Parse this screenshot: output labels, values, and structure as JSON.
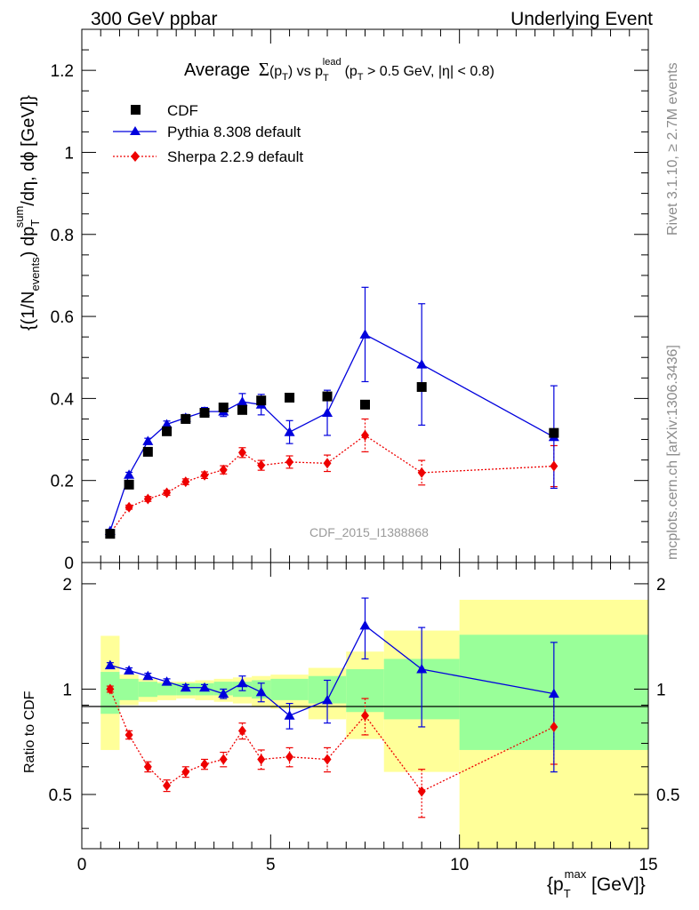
{
  "header": {
    "energy": "300 GeV ppbar",
    "process": "Underlying Event"
  },
  "side_labels": {
    "rivet": "Rivet 3.1.10, ≥ 2.7M events",
    "mcplots": "mcplots.cern.ch [arXiv:1306.3436]"
  },
  "watermark": "CDF_2015_I1388868",
  "chart_data": [
    {
      "type": "scatter",
      "title_parts": {
        "prefix": "Average",
        "sigma": "Σ",
        "pt_open": "(p",
        "pt_sub": "T",
        "pt_close": ") vs p",
        "lead_sub": "T",
        "lead_sup": "lead",
        "cut_open": "(p",
        "cut_sub": "T",
        "cut_rest": " > 0.5 GeV, |η| < 0.8)"
      },
      "ylabel_parts": {
        "p1": "{(1/N",
        "sub1": "events",
        "p2": ") dp",
        "sub2": "T",
        "sup2": "sum",
        "p3": "/dη, dϕ [GeV]}"
      },
      "ylim": [
        0,
        1.3
      ],
      "xlim": [
        0,
        15
      ],
      "ytick_labels": [
        "0",
        "0.2",
        "0.4",
        "0.6",
        "0.8",
        "1",
        "1.2"
      ],
      "ytick_values": [
        0,
        0.2,
        0.4,
        0.6,
        0.8,
        1.0,
        1.2
      ],
      "legend_position": "top-left",
      "series": [
        {
          "name": "CDF",
          "color": "#000000",
          "marker": "square",
          "line": "none",
          "x": [
            0.75,
            1.25,
            1.75,
            2.25,
            2.75,
            3.25,
            3.75,
            4.25,
            4.75,
            5.5,
            6.5,
            7.5,
            9.0,
            12.5
          ],
          "y": [
            0.07,
            0.19,
            0.27,
            0.32,
            0.35,
            0.365,
            0.378,
            0.372,
            0.395,
            0.402,
            0.405,
            0.385,
            0.428,
            0.316
          ]
        },
        {
          "name": "Pythia 8.308 default",
          "color": "#0000dd",
          "marker": "triangle",
          "line": "solid",
          "x": [
            0.75,
            1.25,
            1.75,
            2.25,
            2.75,
            3.25,
            3.75,
            4.25,
            4.75,
            5.5,
            6.5,
            7.5,
            9.0,
            12.5
          ],
          "y": [
            0.077,
            0.214,
            0.296,
            0.337,
            0.353,
            0.368,
            0.368,
            0.392,
            0.385,
            0.318,
            0.365,
            0.556,
            0.483,
            0.306
          ],
          "err": [
            0.004,
            0.006,
            0.007,
            0.008,
            0.008,
            0.01,
            0.012,
            0.02,
            0.025,
            0.028,
            0.055,
            0.115,
            0.148,
            0.125
          ]
        },
        {
          "name": "Sherpa 2.2.9 default",
          "color": "#ee0000",
          "marker": "diamond",
          "line": "dotted",
          "x": [
            0.75,
            1.25,
            1.75,
            2.25,
            2.75,
            3.25,
            3.75,
            4.25,
            4.75,
            5.5,
            6.5,
            7.5,
            9.0,
            12.5
          ],
          "y": [
            0.071,
            0.135,
            0.155,
            0.17,
            0.197,
            0.213,
            0.226,
            0.268,
            0.237,
            0.245,
            0.242,
            0.31,
            0.219,
            0.235
          ],
          "err": [
            0.003,
            0.005,
            0.006,
            0.006,
            0.007,
            0.008,
            0.01,
            0.012,
            0.012,
            0.015,
            0.02,
            0.04,
            0.03,
            0.05
          ]
        }
      ]
    },
    {
      "type": "scatter",
      "ylabel": "Ratio to CDF",
      "ylim": [
        0.35,
        2.3
      ],
      "xlim": [
        0,
        15
      ],
      "ytick_labels": [
        "0.5",
        "1",
        "2"
      ],
      "ytick_values": [
        0.5,
        1.0,
        2.0
      ],
      "xtick_labels": [
        "0",
        "5",
        "10",
        "15"
      ],
      "xtick_values": [
        0,
        5,
        10,
        15
      ],
      "xlabel_parts": {
        "p1": "{p",
        "sub": "T",
        "sup": "max",
        "p2": " [GeV]}"
      },
      "band_colors": {
        "inner": "#99ff99",
        "outer": "#ffff99"
      },
      "bins": [
        {
          "x0": 0.5,
          "x1": 1.0,
          "inner": [
            0.85,
            1.12
          ],
          "outer": [
            0.67,
            1.42
          ]
        },
        {
          "x0": 1.0,
          "x1": 1.5,
          "inner": [
            0.93,
            1.07
          ],
          "outer": [
            0.9,
            1.1
          ]
        },
        {
          "x0": 1.5,
          "x1": 2.0,
          "inner": [
            0.95,
            1.05
          ],
          "outer": [
            0.92,
            1.07
          ]
        },
        {
          "x0": 2.0,
          "x1": 2.5,
          "inner": [
            0.96,
            1.04
          ],
          "outer": [
            0.93,
            1.05
          ]
        },
        {
          "x0": 2.5,
          "x1": 3.0,
          "inner": [
            0.96,
            1.04
          ],
          "outer": [
            0.94,
            1.05
          ]
        },
        {
          "x0": 3.0,
          "x1": 3.5,
          "inner": [
            0.96,
            1.04
          ],
          "outer": [
            0.93,
            1.06
          ]
        },
        {
          "x0": 3.5,
          "x1": 4.0,
          "inner": [
            0.96,
            1.05
          ],
          "outer": [
            0.92,
            1.07
          ]
        },
        {
          "x0": 4.0,
          "x1": 4.5,
          "inner": [
            0.95,
            1.05
          ],
          "outer": [
            0.91,
            1.08
          ]
        },
        {
          "x0": 4.5,
          "x1": 5.0,
          "inner": [
            0.94,
            1.06
          ],
          "outer": [
            0.89,
            1.09
          ]
        },
        {
          "x0": 5.0,
          "x1": 6.0,
          "inner": [
            0.93,
            1.07
          ],
          "outer": [
            0.88,
            1.1
          ]
        },
        {
          "x0": 6.0,
          "x1": 7.0,
          "inner": [
            0.91,
            1.09
          ],
          "outer": [
            0.82,
            1.15
          ]
        },
        {
          "x0": 7.0,
          "x1": 8.0,
          "inner": [
            0.86,
            1.14
          ],
          "outer": [
            0.72,
            1.28
          ]
        },
        {
          "x0": 8.0,
          "x1": 10.0,
          "inner": [
            0.82,
            1.22
          ],
          "outer": [
            0.58,
            1.47
          ]
        },
        {
          "x0": 10.0,
          "x1": 15.0,
          "inner": [
            0.67,
            1.43
          ],
          "outer": [
            0.35,
            1.8
          ]
        }
      ],
      "series": [
        {
          "name": "Pythia 8.308 default",
          "color": "#0000dd",
          "marker": "triangle",
          "line": "solid",
          "x": [
            0.75,
            1.25,
            1.75,
            2.25,
            2.75,
            3.25,
            3.75,
            4.25,
            4.75,
            5.5,
            6.5,
            7.5,
            9.0,
            12.5
          ],
          "y": [
            1.17,
            1.13,
            1.09,
            1.05,
            1.01,
            1.01,
            0.97,
            1.04,
            0.98,
            0.84,
            0.93,
            1.52,
            1.14,
            0.97
          ],
          "err": [
            0.02,
            0.02,
            0.02,
            0.02,
            0.02,
            0.02,
            0.03,
            0.05,
            0.06,
            0.07,
            0.13,
            0.3,
            0.36,
            0.39
          ]
        },
        {
          "name": "Sherpa 2.2.9 default",
          "color": "#ee0000",
          "marker": "diamond",
          "line": "dotted",
          "x": [
            0.75,
            1.25,
            1.75,
            2.25,
            2.75,
            3.25,
            3.75,
            4.25,
            4.75,
            5.5,
            6.5,
            7.5,
            9.0,
            12.5
          ],
          "y": [
            1.0,
            0.74,
            0.6,
            0.53,
            0.58,
            0.61,
            0.63,
            0.76,
            0.63,
            0.64,
            0.63,
            0.84,
            0.51,
            0.78
          ],
          "err": [
            0.02,
            0.02,
            0.02,
            0.02,
            0.02,
            0.02,
            0.03,
            0.04,
            0.04,
            0.04,
            0.05,
            0.1,
            0.08,
            0.17
          ]
        }
      ]
    }
  ]
}
